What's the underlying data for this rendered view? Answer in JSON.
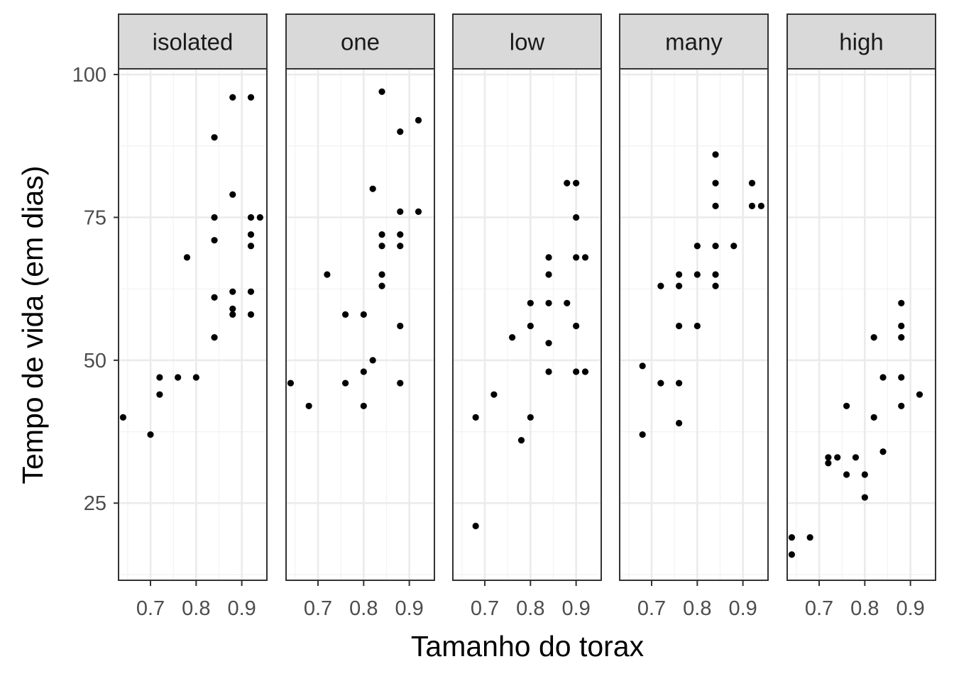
{
  "chart_data": {
    "type": "scatter",
    "xlabel": "Tamanho do torax",
    "ylabel": "Tempo de vida (em dias)",
    "x_ticks": [
      0.7,
      0.8,
      0.9
    ],
    "x_tick_labels": [
      "0.7",
      "0.8",
      "0.9"
    ],
    "y_ticks": [
      25,
      50,
      75,
      100
    ],
    "y_tick_labels": [
      "25",
      "50",
      "75",
      "100"
    ],
    "xlim": [
      0.63,
      0.955
    ],
    "ylim": [
      11.5,
      101
    ],
    "grid": true,
    "colors": {
      "point": "#000000",
      "strip_fill": "#d9d9d9",
      "border": "#333333",
      "grid_major": "#ebebeb",
      "grid_minor": "#f3f3f3"
    },
    "panels": [
      {
        "name": "isolated",
        "x": [
          0.64,
          0.7,
          0.72,
          0.72,
          0.76,
          0.78,
          0.8,
          0.84,
          0.84,
          0.84,
          0.84,
          0.84,
          0.88,
          0.88,
          0.88,
          0.88,
          0.88,
          0.92,
          0.92,
          0.92,
          0.92,
          0.92,
          0.92,
          0.94
        ],
        "y": [
          40,
          37,
          47,
          44,
          47,
          68,
          47,
          89,
          75,
          71,
          61,
          54,
          96,
          79,
          62,
          59,
          58,
          96,
          75,
          72,
          70,
          62,
          58,
          75
        ]
      },
      {
        "name": "one",
        "x": [
          0.64,
          0.68,
          0.72,
          0.76,
          0.76,
          0.8,
          0.8,
          0.8,
          0.82,
          0.82,
          0.84,
          0.84,
          0.84,
          0.84,
          0.84,
          0.88,
          0.88,
          0.88,
          0.88,
          0.88,
          0.88,
          0.92,
          0.92
        ],
        "y": [
          46,
          42,
          65,
          58,
          46,
          58,
          48,
          42,
          80,
          50,
          97,
          72,
          70,
          65,
          63,
          90,
          76,
          72,
          70,
          56,
          46,
          92,
          76
        ]
      },
      {
        "name": "low",
        "x": [
          0.68,
          0.68,
          0.72,
          0.76,
          0.78,
          0.8,
          0.8,
          0.8,
          0.84,
          0.84,
          0.84,
          0.84,
          0.84,
          0.88,
          0.88,
          0.9,
          0.9,
          0.9,
          0.9,
          0.9,
          0.92,
          0.92
        ],
        "y": [
          40,
          21,
          44,
          54,
          36,
          60,
          56,
          40,
          68,
          65,
          60,
          53,
          48,
          81,
          60,
          81,
          75,
          68,
          56,
          48,
          68,
          48
        ]
      },
      {
        "name": "many",
        "x": [
          0.68,
          0.68,
          0.72,
          0.72,
          0.76,
          0.76,
          0.76,
          0.76,
          0.76,
          0.8,
          0.8,
          0.8,
          0.84,
          0.84,
          0.84,
          0.84,
          0.84,
          0.84,
          0.88,
          0.92,
          0.92,
          0.94
        ],
        "y": [
          49,
          37,
          63,
          46,
          65,
          63,
          56,
          46,
          39,
          70,
          65,
          56,
          86,
          81,
          77,
          70,
          65,
          63,
          70,
          81,
          77,
          77
        ]
      },
      {
        "name": "high",
        "x": [
          0.64,
          0.64,
          0.68,
          0.72,
          0.72,
          0.74,
          0.76,
          0.76,
          0.78,
          0.8,
          0.8,
          0.82,
          0.82,
          0.84,
          0.84,
          0.88,
          0.88,
          0.88,
          0.88,
          0.88,
          0.92
        ],
        "y": [
          19,
          16,
          19,
          33,
          32,
          33,
          42,
          30,
          33,
          30,
          26,
          54,
          40,
          47,
          34,
          60,
          56,
          54,
          47,
          42,
          44
        ]
      }
    ]
  }
}
